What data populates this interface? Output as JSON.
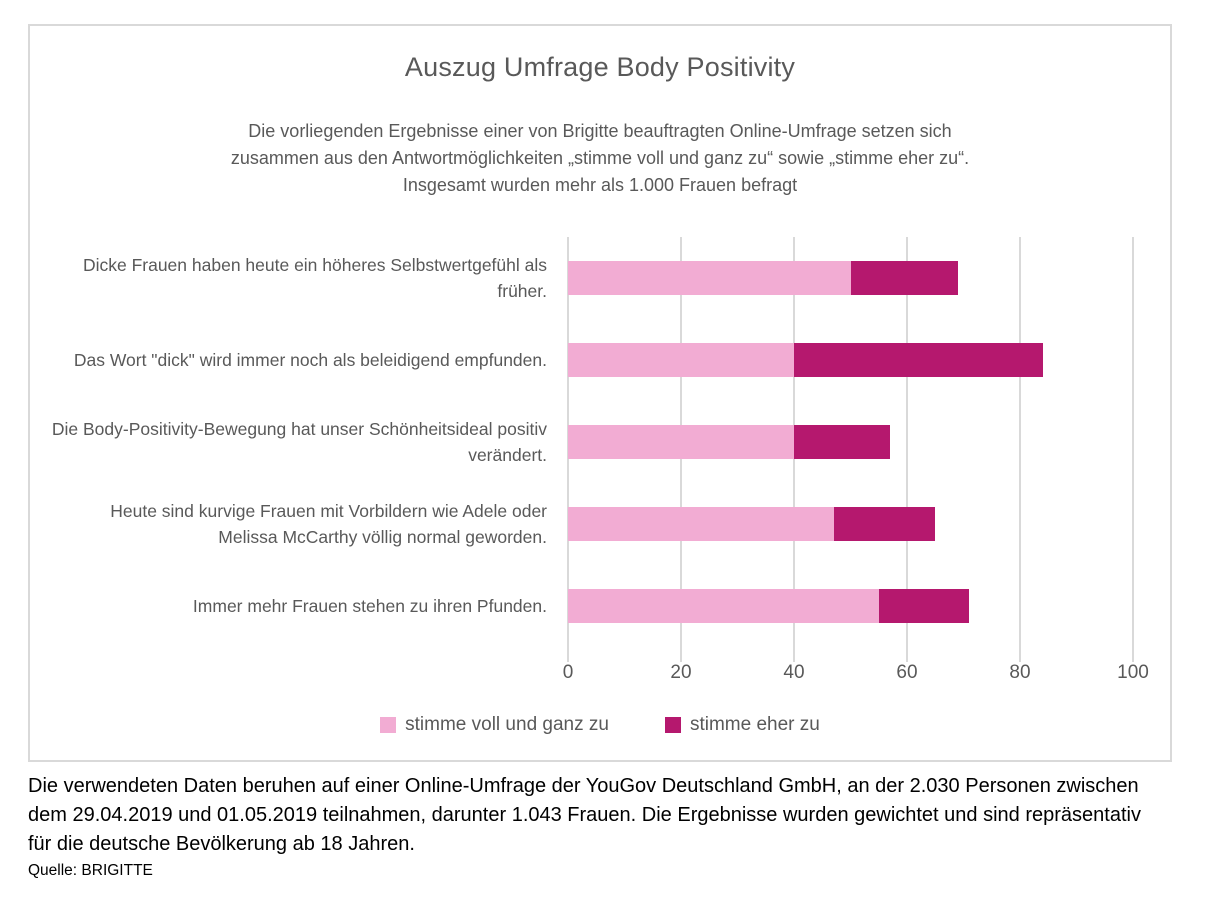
{
  "chart_data": {
    "type": "bar",
    "orientation": "horizontal-stacked",
    "title": "Auszug Umfrage Body Positivity",
    "subtitle_lines": [
      "Die vorliegenden Ergebnisse einer von Brigitte beauftragten Online-Umfrage setzen sich",
      "zusammen aus den Antwortmöglichkeiten „stimme voll und ganz zu“ sowie „stimme eher zu“.",
      "Insgesamt wurden mehr als 1.000 Frauen befragt"
    ],
    "categories": [
      "Dicke Frauen haben heute ein höheres Selbstwertgefühl als früher.",
      "Das Wort \"dick\" wird immer noch als beleidigend empfunden.",
      "Die Body-Positivity-Bewegung hat unser Schönheitsideal positiv verändert.",
      "Heute sind kurvige Frauen mit Vorbildern wie Adele oder Melissa McCarthy völlig normal geworden.",
      "Immer mehr Frauen stehen zu ihren Pfunden."
    ],
    "series": [
      {
        "name": "stimme voll und ganz zu",
        "color": "#F2ACD3",
        "values": [
          50,
          40,
          40,
          47,
          55
        ]
      },
      {
        "name": "stimme eher zu",
        "color": "#B5186E",
        "values": [
          19,
          44,
          17,
          18,
          16
        ]
      }
    ],
    "stacked_totals": [
      69,
      84,
      57,
      65,
      71
    ],
    "xlabel": "",
    "ylabel": "",
    "xlim": [
      0,
      100
    ],
    "xticks": [
      0,
      20,
      40,
      60,
      80,
      100
    ],
    "grid": true,
    "legend_position": "bottom",
    "colors": {
      "text_gray": "#595959",
      "gridline": "#D9D9D9",
      "frame_border": "#D9D9D9",
      "footer_text": "#000000"
    }
  },
  "footer": {
    "note": "Die verwendeten Daten beruhen auf einer Online-Umfrage der YouGov Deutschland GmbH, an der 2.030 Personen zwischen dem 29.04.2019 und 01.05.2019 teilnahmen, darunter 1.043 Frauen. Die Ergebnisse wurden gewichtet und sind repräsentativ für die deutsche Bevölkerung ab 18 Jahren.",
    "source": "Quelle: BRIGITTE"
  }
}
